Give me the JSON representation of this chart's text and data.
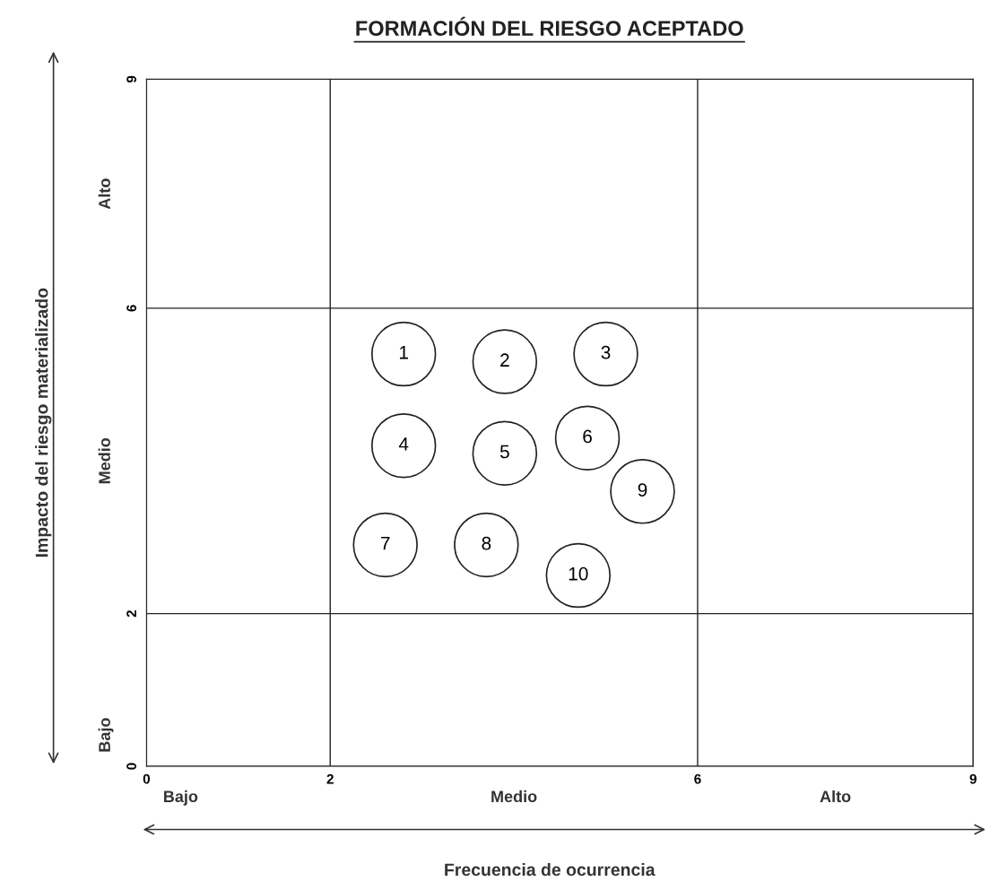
{
  "chart_data": {
    "type": "scatter",
    "title": "FORMACIÓN DEL RIESGO ACEPTADO",
    "xlabel": "Frecuencia de ocurrencia",
    "ylabel": "Impacto del riesgo materializado",
    "x": [
      2.8,
      3.9,
      5.0,
      2.8,
      3.9,
      4.8,
      2.6,
      3.7,
      5.4,
      4.7
    ],
    "series": [
      {
        "color": "#ffffff",
        "values": [
          5.4,
          5.3,
          5.4,
          4.2,
          4.1,
          4.3,
          2.9,
          2.9,
          3.6,
          2.5
        ]
      }
    ],
    "xlim": [
      0,
      9
    ],
    "xticks": [
      0,
      2,
      6,
      9
    ],
    "ylim": [
      0,
      9
    ],
    "yticks": [
      0,
      2,
      6,
      9
    ],
    "grid": true,
    "marker": "circle",
    "annotations": [
      "Bajo",
      "Medio",
      "Alto",
      "Bajo",
      "Medio",
      "Alto",
      {
        "text": "1",
        "x": 2.8,
        "y": 5.4
      },
      {
        "text": "2",
        "x": 3.9,
        "y": 5.3
      },
      {
        "text": "3",
        "x": 5.0,
        "y": 5.4
      },
      {
        "text": "4",
        "x": 2.8,
        "y": 4.2
      },
      {
        "text": "5",
        "x": 3.9,
        "y": 4.1
      },
      {
        "text": "6",
        "x": 4.8,
        "y": 4.3
      },
      {
        "text": "7",
        "x": 2.6,
        "y": 2.9
      },
      {
        "text": "8",
        "x": 3.7,
        "y": 2.9
      },
      {
        "text": "9",
        "x": 5.4,
        "y": 3.6
      },
      {
        "text": "10",
        "x": 4.7,
        "y": 2.5
      }
    ]
  }
}
